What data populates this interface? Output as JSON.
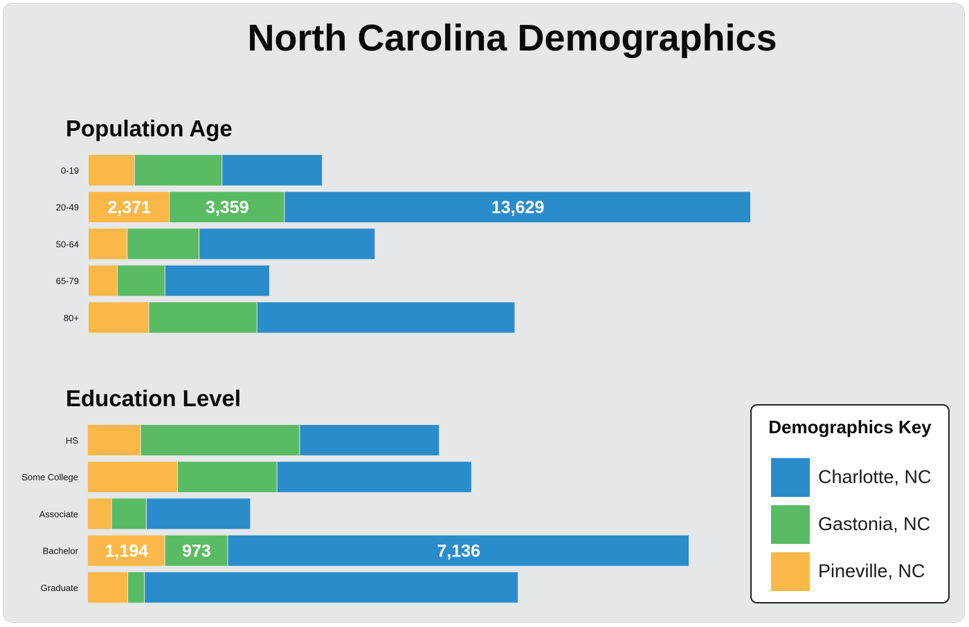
{
  "title": "North Carolina Demographics",
  "colors": {
    "charlotte": "#2b8ccc",
    "gastonia": "#59bb64",
    "pineville": "#fbb848"
  },
  "legend": {
    "title": "Demographics Key",
    "items": [
      {
        "label": "Charlotte, NC",
        "color": "#2b8ccc"
      },
      {
        "label": "Gastonia, NC",
        "color": "#59bb64"
      },
      {
        "label": "Pineville, NC",
        "color": "#fbb848"
      }
    ]
  },
  "chart_data": [
    {
      "type": "bar",
      "orientation": "horizontal",
      "stacked": true,
      "title": "Population Age",
      "categories": [
        "0-19",
        "20-49",
        "50-64",
        "65-79",
        "80+"
      ],
      "series": [
        {
          "name": "Pineville, NC",
          "values": [
            1350,
            2371,
            1140,
            850,
            1770
          ]
        },
        {
          "name": "Gastonia, NC",
          "values": [
            2560,
            3359,
            2100,
            1390,
            3160
          ]
        },
        {
          "name": "Charlotte, NC",
          "values": [
            2930,
            13629,
            5140,
            3060,
            7540
          ]
        }
      ],
      "data_labels": {
        "20-49": [
          "2,371",
          "3,359",
          "13,629"
        ]
      }
    },
    {
      "type": "bar",
      "orientation": "horizontal",
      "stacked": true,
      "title": "Education Level",
      "categories": [
        "HS",
        "Some College",
        "Associate",
        "Bachelor",
        "Graduate"
      ],
      "series": [
        {
          "name": "Pineville, NC",
          "values": [
            820,
            1390,
            370,
            1194,
            620
          ]
        },
        {
          "name": "Gastonia, NC",
          "values": [
            2460,
            1540,
            540,
            973,
            260
          ]
        },
        {
          "name": "Charlotte, NC",
          "values": [
            2160,
            3010,
            1610,
            7136,
            5780
          ]
        }
      ],
      "data_labels": {
        "Bachelor": [
          "1,194",
          "973",
          "7,136"
        ]
      }
    }
  ]
}
